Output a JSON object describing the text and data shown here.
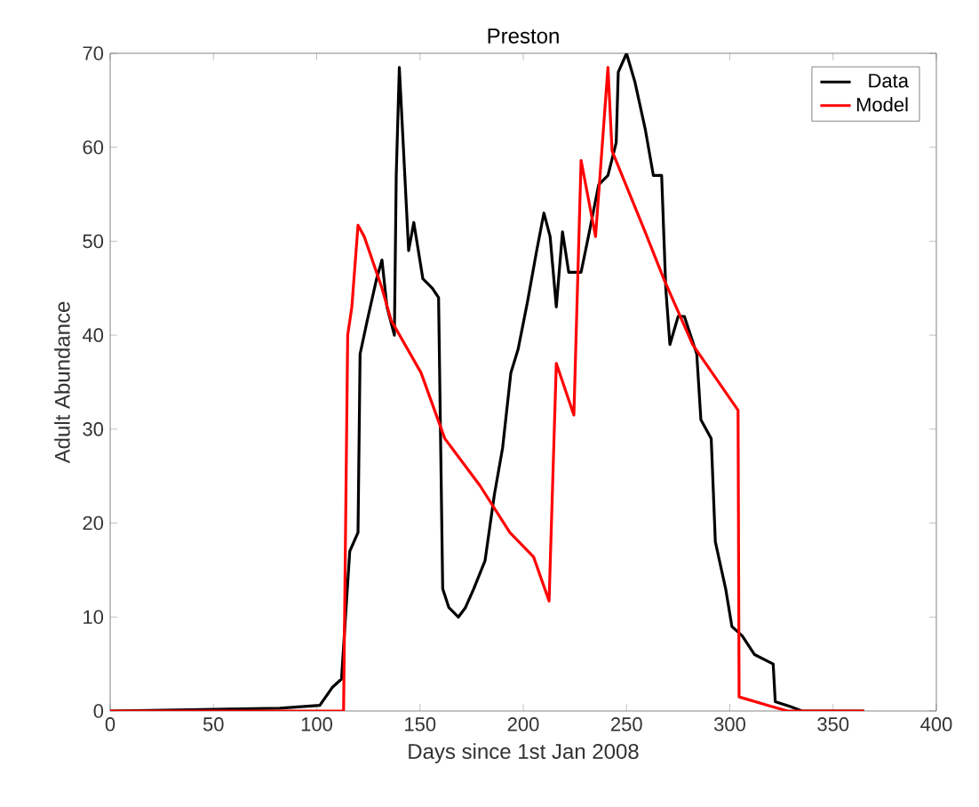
{
  "chart_data": {
    "type": "line",
    "title": "Preston",
    "xlabel": "Days since 1st Jan 2008",
    "ylabel": "Adult Abundance",
    "xlim": [
      0,
      400
    ],
    "ylim": [
      0,
      70
    ],
    "xticks": [
      0,
      50,
      100,
      150,
      200,
      250,
      300,
      350,
      400
    ],
    "yticks": [
      0,
      10,
      20,
      30,
      40,
      50,
      60,
      70
    ],
    "legend": "top right",
    "grid": false,
    "line_style": "solid",
    "marker": "none",
    "series": [
      {
        "name": "Data",
        "color": "#000000",
        "x": [
          0,
          82,
          101.5,
          107.5,
          112,
          116,
          120,
          121,
          124.5,
          129,
          131.6,
          134,
          137.6,
          138.5,
          140,
          144.5,
          147,
          151.4,
          156,
          159,
          161,
          164,
          168.6,
          172,
          176,
          181.5,
          186,
          190,
          194,
          197.5,
          202,
          206.5,
          210,
          213,
          216,
          219,
          222,
          228,
          232,
          236.5,
          241,
          245,
          246,
          250,
          254,
          259,
          263,
          267,
          269,
          271,
          275,
          278,
          284,
          286,
          291,
          293,
          298,
          301,
          306,
          312,
          321,
          322,
          329,
          335,
          365
        ],
        "values": [
          0,
          0.3,
          0.6,
          2.5,
          3.4,
          17,
          19,
          38,
          41.6,
          46,
          48,
          43,
          40,
          57,
          68.5,
          49,
          52,
          46,
          45,
          44,
          13,
          11,
          10,
          11,
          13,
          16,
          23,
          28,
          36,
          38.5,
          43.5,
          49,
          53,
          50.5,
          43,
          51,
          46.7,
          46.7,
          51,
          56,
          57,
          60.5,
          68,
          70,
          67,
          62,
          57,
          57,
          45,
          39,
          42,
          42,
          38,
          31,
          29,
          18,
          13,
          9,
          8,
          6,
          5,
          1,
          0.5,
          0,
          0
        ]
      },
      {
        "name": "Model",
        "color": "#ff0000",
        "x": [
          0,
          113,
          115,
          117,
          120,
          123,
          131.6,
          136,
          150.5,
          162,
          179,
          193.5,
          205,
          212.5,
          216,
          224.5,
          228,
          235,
          241,
          243,
          259,
          268,
          282,
          304,
          304.5,
          320,
          328,
          365
        ],
        "values": [
          0,
          0,
          40,
          43,
          51.7,
          50.5,
          45,
          41.6,
          36,
          29,
          24,
          19,
          16.4,
          11.7,
          37,
          31.5,
          58.6,
          50.5,
          68.5,
          59.6,
          51,
          46,
          39,
          32,
          1.5,
          0.5,
          0,
          0
        ]
      }
    ]
  }
}
